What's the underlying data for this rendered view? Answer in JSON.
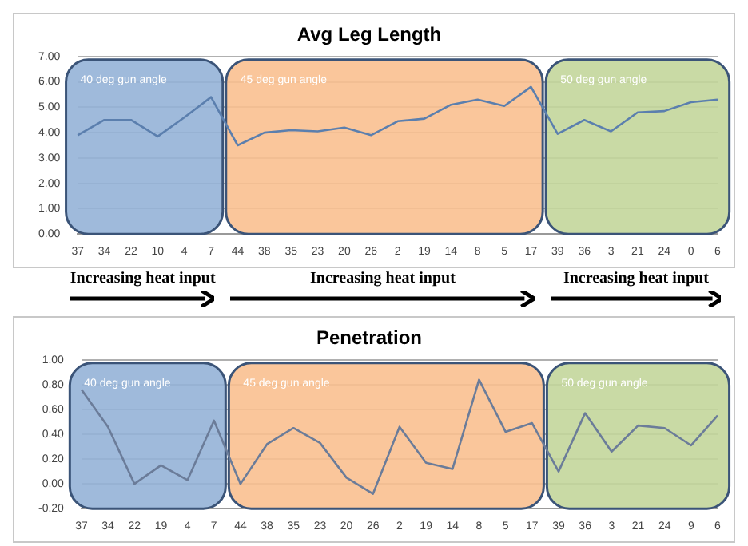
{
  "chart_data": [
    {
      "type": "line",
      "title": "Avg Leg Length",
      "categories": [
        "37",
        "34",
        "22",
        "10",
        "4",
        "7",
        "44",
        "38",
        "35",
        "23",
        "20",
        "26",
        "2",
        "19",
        "14",
        "8",
        "5",
        "17",
        "39",
        "36",
        "3",
        "21",
        "24",
        "0",
        "6"
      ],
      "series": [
        {
          "color": "#5b7fae",
          "values": [
            3.9,
            4.5,
            4.5,
            3.85,
            4.6,
            5.4,
            3.5,
            4.0,
            4.1,
            4.05,
            4.2,
            3.9,
            4.45,
            4.55,
            5.1,
            5.3,
            5.05,
            5.8,
            3.95,
            4.5,
            4.05,
            4.8,
            4.85,
            5.2,
            5.3
          ]
        }
      ],
      "ylim": [
        0,
        7
      ],
      "yticks": [
        {
          "value": 0,
          "label": "0.00"
        },
        {
          "value": 1,
          "label": "1.00"
        },
        {
          "value": 2,
          "label": "2.00"
        },
        {
          "value": 3,
          "label": "3.00"
        },
        {
          "value": 4,
          "label": "4.00"
        },
        {
          "value": 5,
          "label": "5.00"
        },
        {
          "value": 6,
          "label": "6.00"
        },
        {
          "value": 7,
          "label": "7.00"
        }
      ],
      "grid": "y",
      "legend": false,
      "marker": "none",
      "bands": [
        {
          "axis": "x",
          "from": "37",
          "to": "7",
          "label": "40 deg gun angle",
          "color": "#95b3d7"
        },
        {
          "axis": "x",
          "from": "44",
          "to": "17",
          "label": "45 deg gun angle",
          "color": "#fac090"
        },
        {
          "axis": "x",
          "from": "39",
          "to": "6",
          "label": "50 deg gun angle",
          "color": "#c3d69b"
        }
      ],
      "annotations": [
        "Increasing heat input",
        "Increasing heat input",
        "Increasing heat input"
      ]
    },
    {
      "type": "line",
      "title": "Penetration",
      "categories": [
        "37",
        "34",
        "22",
        "19",
        "4",
        "7",
        "44",
        "38",
        "35",
        "23",
        "20",
        "26",
        "2",
        "19",
        "14",
        "8",
        "5",
        "17",
        "39",
        "36",
        "3",
        "21",
        "24",
        "9",
        "6"
      ],
      "series": [
        {
          "color": "#6b7c99",
          "values": [
            0.76,
            0.46,
            0.0,
            0.15,
            0.03,
            0.51,
            0.0,
            0.32,
            0.45,
            0.33,
            0.05,
            -0.08,
            0.46,
            0.17,
            0.12,
            0.84,
            0.42,
            0.49,
            0.1,
            0.57,
            0.26,
            0.47,
            0.45,
            0.31,
            0.55
          ]
        }
      ],
      "ylim": [
        -0.2,
        1.0
      ],
      "yticks": [
        {
          "value": -0.2,
          "label": "-0.20"
        },
        {
          "value": 0,
          "label": "0.00"
        },
        {
          "value": 0.2,
          "label": "0.20"
        },
        {
          "value": 0.4,
          "label": "0.40"
        },
        {
          "value": 0.6,
          "label": "0.60"
        },
        {
          "value": 0.8,
          "label": "0.80"
        },
        {
          "value": 1.0,
          "label": "1.00"
        }
      ],
      "grid": "y",
      "legend": false,
      "marker": "none",
      "bands": [
        {
          "axis": "x",
          "from": "37",
          "to": "7",
          "label": "40 deg gun angle",
          "color": "#95b3d7"
        },
        {
          "axis": "x",
          "from": "44",
          "to": "17",
          "label": "45 deg gun angle",
          "color": "#fac090"
        },
        {
          "axis": "x",
          "from": "39",
          "to": "6",
          "label": "50 deg gun angle",
          "color": "#c3d69b"
        }
      ]
    }
  ]
}
